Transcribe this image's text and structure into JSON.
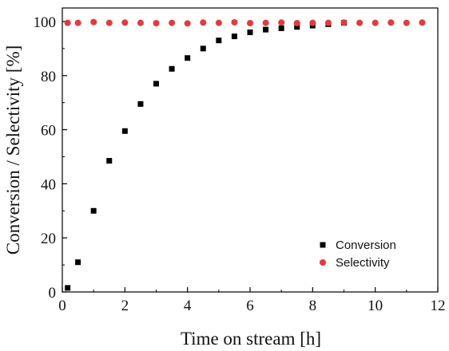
{
  "chart_data": {
    "type": "scatter",
    "xlabel": "Time on stream [h]",
    "ylabel": "Conversion / Selectivity [%]",
    "xlim": [
      0,
      12
    ],
    "ylim": [
      0,
      105
    ],
    "xticks": [
      0,
      2,
      4,
      6,
      8,
      10,
      12
    ],
    "yticks": [
      0,
      20,
      40,
      60,
      80,
      100
    ],
    "grid": false,
    "legend_position": "bottom-right",
    "series": [
      {
        "name": "Conversion",
        "marker": "square",
        "color": "#000000",
        "x": [
          0.17,
          0.5,
          1.0,
          1.5,
          2.0,
          2.5,
          3.0,
          3.5,
          4.0,
          4.5,
          5.0,
          5.5,
          6.0,
          6.5,
          7.0,
          7.5,
          8.0,
          8.5,
          9.0
        ],
        "y": [
          1.5,
          11,
          30,
          48.5,
          59.5,
          69.5,
          77,
          82.5,
          86.5,
          90,
          93,
          94.5,
          96,
          97,
          97.5,
          98,
          98.5,
          99,
          99.5
        ]
      },
      {
        "name": "Selectivity",
        "marker": "circle",
        "color": "#e8383d",
        "x": [
          0.17,
          0.5,
          1.0,
          1.5,
          2.0,
          2.5,
          3.0,
          3.5,
          4.0,
          4.5,
          5.0,
          5.5,
          6.0,
          6.5,
          7.0,
          7.5,
          8.0,
          8.5,
          9.0,
          9.5,
          10.0,
          10.5,
          11.0,
          11.5
        ],
        "y": [
          99.5,
          99.5,
          99.8,
          99.5,
          99.6,
          99.5,
          99.4,
          99.5,
          99.3,
          99.6,
          99.5,
          99.7,
          99.4,
          99.5,
          99.6,
          99.4,
          99.5,
          99.5,
          99.6,
          99.5,
          99.5,
          99.6,
          99.5,
          99.6
        ]
      }
    ]
  }
}
